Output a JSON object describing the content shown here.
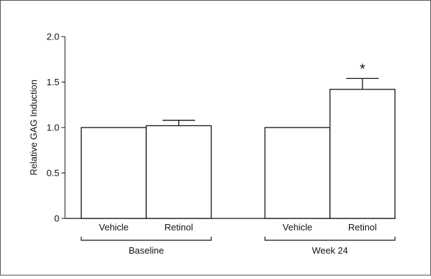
{
  "chart_data": {
    "type": "bar",
    "title": "",
    "xlabel": "",
    "ylabel": "Relative GAG Induction",
    "ylim": [
      0,
      2.0
    ],
    "yticks": [
      {
        "value": 0,
        "label": "0"
      },
      {
        "value": 0.5,
        "label": "0.5"
      },
      {
        "value": 1.0,
        "label": "1.0"
      },
      {
        "value": 1.5,
        "label": "1.5"
      },
      {
        "value": 2.0,
        "label": "2.0"
      }
    ],
    "groups": [
      {
        "label": "Baseline",
        "bars": [
          {
            "label": "Vehicle",
            "value": 1.0,
            "error": 0
          },
          {
            "label": "Retinol",
            "value": 1.02,
            "error": 0.06
          }
        ]
      },
      {
        "label": "Week 24",
        "bars": [
          {
            "label": "Vehicle",
            "value": 1.0,
            "error": 0
          },
          {
            "label": "Retinol",
            "value": 1.42,
            "error": 0.12,
            "annotation": "*"
          }
        ]
      }
    ],
    "grid": false,
    "legend": "none",
    "colors": {
      "bar_fill": "#ffffff",
      "stroke": "#111111",
      "frame": "#555555"
    }
  }
}
